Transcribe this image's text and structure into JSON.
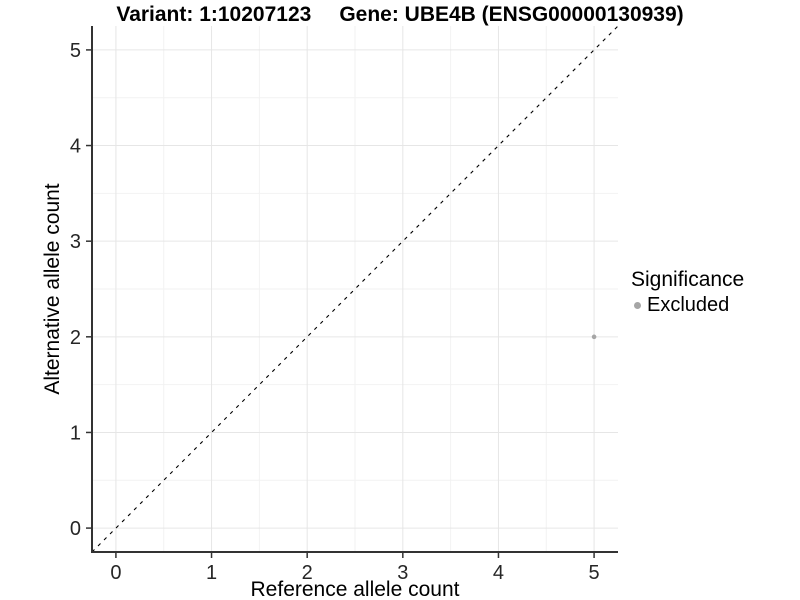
{
  "header": {
    "variant_title": "Variant: 1:10207123",
    "gene_title": "Gene: UBE4B (ENSG00000130939)"
  },
  "chart_data": {
    "type": "scatter",
    "title": "Variant: 1:10207123   Gene: UBE4B (ENSG00000130939)",
    "xlabel": "Reference allele count",
    "ylabel": "Alternative allele count",
    "xlim": [
      -0.25,
      5.25
    ],
    "ylim": [
      -0.25,
      5.25
    ],
    "xticks": [
      0,
      1,
      2,
      3,
      4,
      5
    ],
    "yticks": [
      0,
      1,
      2,
      3,
      4,
      5
    ],
    "x_minor": [
      0.5,
      1.5,
      2.5,
      3.5,
      4.5
    ],
    "y_minor": [
      0.5,
      1.5,
      2.5,
      3.5,
      4.5
    ],
    "grid": true,
    "points": [
      {
        "x": 5,
        "y": 2,
        "series": "Excluded"
      }
    ],
    "reference_line": {
      "kind": "identity",
      "slope": 1,
      "intercept": 0,
      "style": "dashed",
      "color": "#000000"
    },
    "legend": {
      "title": "Significance",
      "position": "right",
      "entries": [
        {
          "label": "Excluded",
          "color": "#a6a6a6",
          "marker": "circle"
        }
      ]
    }
  },
  "colors": {
    "background": "#ffffff",
    "grid_major": "#e6e6e6",
    "grid_minor": "#f2f2f2",
    "axis": "#333333",
    "tick_label": "#262626",
    "text": "#000000",
    "point": "#a6a6a6",
    "dashed_line": "#000000"
  }
}
